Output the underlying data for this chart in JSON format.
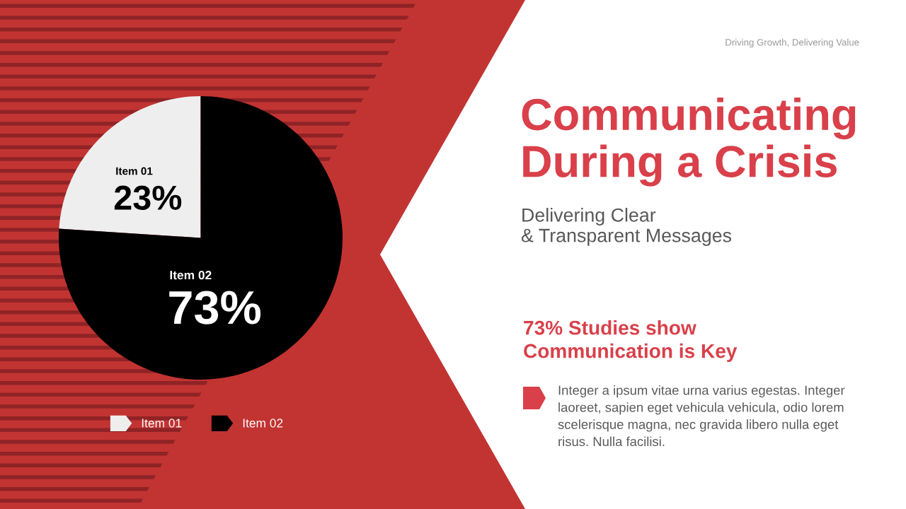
{
  "chart_data": {
    "type": "pie",
    "title": "Communicating During a Crisis",
    "subtitle": "Delivering Clear\n& Transparent Messages",
    "categories": [
      "Item 01",
      "Item 02"
    ],
    "values": [
      23,
      73
    ],
    "colors": [
      "#eeeeee",
      "#000000"
    ],
    "value_labels": [
      "23%",
      "73%"
    ],
    "legend": "bottom",
    "annotations": [
      "Driving Growth, Delivering Value",
      "73% Studies show\nCommunication is Key",
      "Integer a ipsum vitae urna varius egestas. Integer laoreet, sapien eget vehicula vehicula, odio lorem scelerisque magna, nec gravida libero nulla eget risus. Nulla facilisi."
    ]
  }
}
